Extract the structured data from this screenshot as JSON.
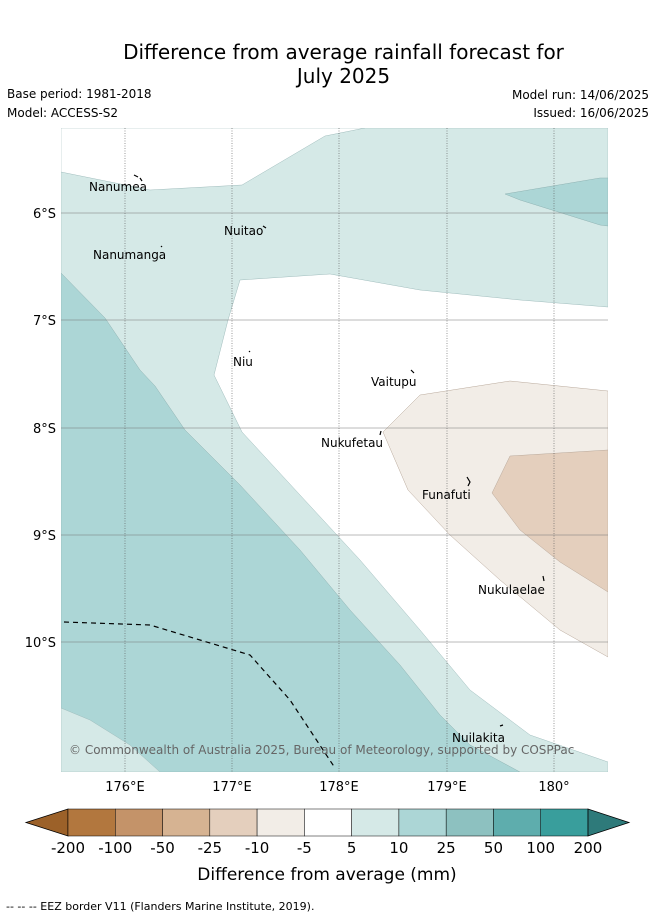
{
  "title_line1": "Difference from average rainfall forecast for",
  "title_line2": "July 2025",
  "base_period": "Base period: 1981-2018",
  "model": "Model: ACCESS-S2",
  "model_run": "Model run: 14/06/2025",
  "issued": "Issued: 16/06/2025",
  "copyright": "© Commonwealth of Australia 2025, Bureau of Meteorology, supported by COSPPac",
  "lon_ticks": [
    "176°E",
    "177°E",
    "178°E",
    "179°E",
    "180°"
  ],
  "lat_ticks": [
    "6°S",
    "7°S",
    "8°S",
    "9°S",
    "10°S"
  ],
  "islands": [
    "Nanumea",
    "Nuitao",
    "Nanumanga",
    "Niu",
    "Vaitupu",
    "Nukufetau",
    "Funafuti",
    "Nukulaelae",
    "Nuilakita"
  ],
  "colorbar": {
    "label": "Difference from average (mm)",
    "ticks": [
      "-200",
      "-100",
      "-50",
      "-25",
      "-10",
      "-5",
      "5",
      "10",
      "25",
      "50",
      "100",
      "200"
    ],
    "colors": [
      "#9c6129",
      "#b2773e",
      "#c49369",
      "#d6b392",
      "#e4cfbd",
      "#f2ede7",
      "#ffffff",
      "#d5e9e7",
      "#acd6d6",
      "#8dc1c0",
      "#5eadad",
      "#399e9c",
      "#2e7a7a"
    ]
  },
  "footer": "-- -- -- EEZ border V11 (Flanders Marine Institute, 2019)."
}
